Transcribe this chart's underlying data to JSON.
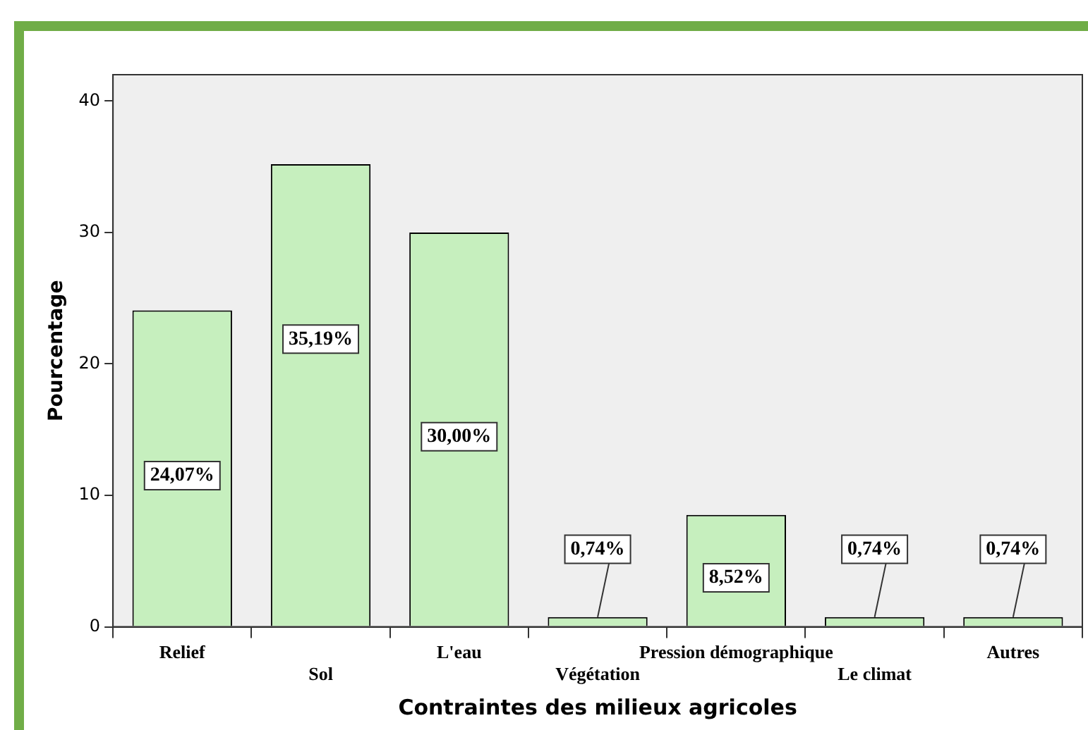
{
  "chart_data": {
    "type": "bar",
    "xlabel": "Contraintes des milieux agricoles",
    "ylabel": "Pourcentage",
    "categories": [
      "Relief",
      "Sol",
      "L'eau",
      "Végétation",
      "Pression démographique",
      "Le climat",
      "Autres"
    ],
    "values": [
      24.07,
      35.19,
      30.0,
      0.74,
      8.52,
      0.74,
      0.74
    ],
    "value_labels": [
      "24,07%",
      "35,19%",
      "30,00%",
      "0,74%",
      "8,52%",
      "0,74%",
      "0,74%"
    ],
    "color": "#c6efbe",
    "ylim": [
      0,
      42
    ],
    "yticks": [
      0,
      10,
      20,
      30,
      40
    ],
    "grid": false,
    "legend": false
  }
}
